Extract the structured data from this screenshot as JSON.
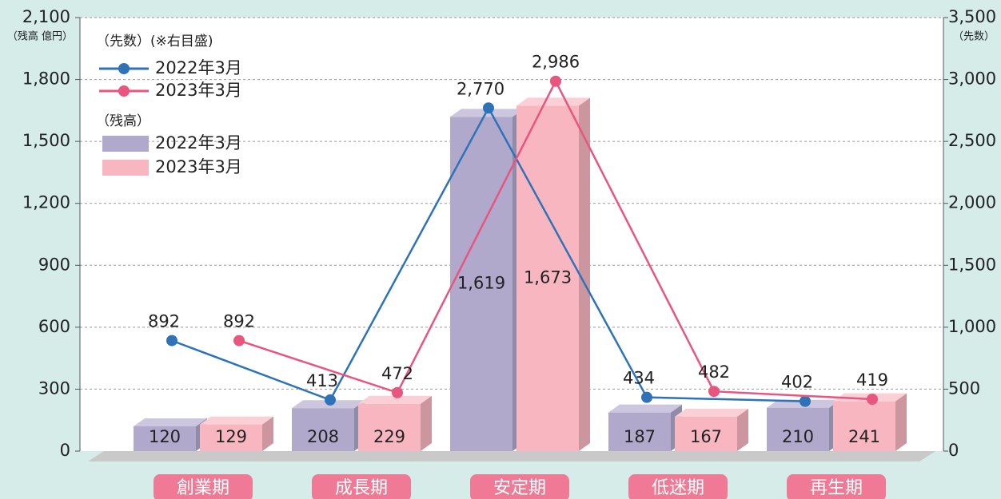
{
  "chart_data": {
    "type": "bar_line",
    "y_label": "（残高 億円）",
    "y2_label": "（先数）",
    "legend_titles": {
      "line": "（先数）(※右目盛)",
      "bar": "（残高）"
    },
    "categories": [
      "創業期",
      "成長期",
      "安定期",
      "低迷期",
      "再生期"
    ],
    "series": [
      {
        "name": "2022年3月",
        "kind": "bar",
        "color": "#b0a9cc",
        "values": [
          120,
          208,
          1619,
          187,
          210
        ],
        "value_labels": [
          "120",
          "208",
          "1,619",
          "187",
          "210"
        ]
      },
      {
        "name": "2023年3月",
        "kind": "bar",
        "color": "#f8b7c0",
        "values": [
          129,
          229,
          1673,
          167,
          241
        ],
        "value_labels": [
          "129",
          "229",
          "1,673",
          "167",
          "241"
        ]
      },
      {
        "name": "2022年3月",
        "kind": "line",
        "axis": "y2",
        "color": "#2e73b8",
        "values": [
          892,
          413,
          2770,
          434,
          402
        ],
        "value_labels": [
          "892",
          "413",
          "2,770",
          "434",
          "402"
        ]
      },
      {
        "name": "2023年3月",
        "kind": "line",
        "axis": "y2",
        "color": "#e8557e",
        "values": [
          892,
          472,
          2986,
          482,
          419
        ],
        "value_labels": [
          "892",
          "472",
          "2,986",
          "482",
          "419"
        ]
      }
    ],
    "ylim": [
      0,
      2100
    ],
    "yticks": [
      0,
      300,
      600,
      900,
      {
        "value": 1200,
        "label": "1,200"
      },
      {
        "value": 1500,
        "label": "1,500"
      },
      {
        "value": 1800,
        "label": "1,800"
      },
      {
        "value": 2100,
        "label": "2,100"
      }
    ],
    "y2lim": [
      0,
      3500
    ],
    "y2ticks": [
      0,
      500,
      {
        "value": 1000,
        "label": "1,000"
      },
      {
        "value": 1500,
        "label": "1,500"
      },
      {
        "value": 2000,
        "label": "2,000"
      },
      {
        "value": 2500,
        "label": "2,500"
      },
      {
        "value": 3000,
        "label": "3,000"
      },
      {
        "value": 3500,
        "label": "3,500"
      }
    ],
    "grid": true
  }
}
